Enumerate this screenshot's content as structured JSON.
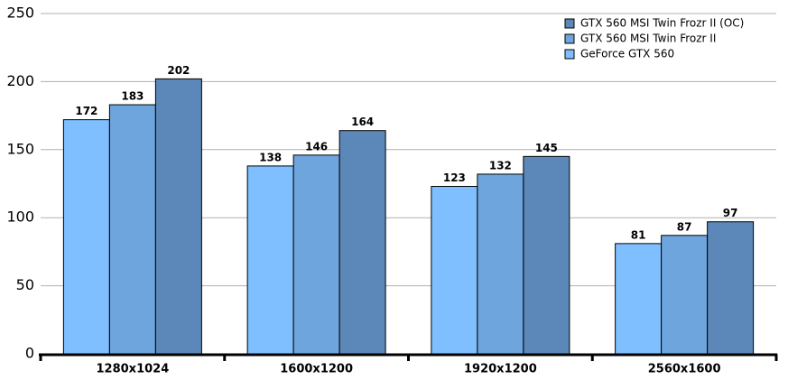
{
  "chart_data": {
    "type": "bar",
    "categories": [
      "1280x1024",
      "1600x1200",
      "1920x1200",
      "2560x1600"
    ],
    "series": [
      {
        "name": "GeForce GTX 560",
        "color": "#7fbfff",
        "values": [
          172,
          138,
          123,
          81
        ]
      },
      {
        "name": "GTX 560 MSI Twin Frozr II",
        "color": "#6fa5dd",
        "values": [
          183,
          146,
          132,
          87
        ]
      },
      {
        "name": "GTX 560 MSI Twin Frozr II (OC)",
        "color": "#5b88b8",
        "values": [
          202,
          164,
          145,
          97
        ]
      }
    ],
    "ylim": [
      0,
      250
    ],
    "yticks": [
      0,
      50,
      100,
      150,
      200,
      250
    ],
    "grid": true,
    "legend": "top-right"
  }
}
